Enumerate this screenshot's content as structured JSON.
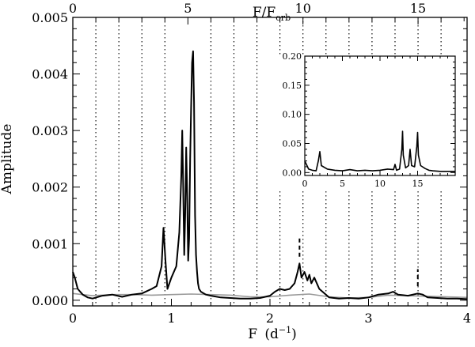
{
  "chart_data": [
    {
      "type": "line",
      "xlabel": "F",
      "xlabel_unit": "(d",
      "xlabel_unit_exp": "−1",
      "xlabel_unit_close": ")",
      "ylabel": "Amplitude",
      "top_axis_label": "F/F",
      "top_axis_label_sub": "orb",
      "xlim": [
        0,
        4
      ],
      "ylim": [
        -0.0001,
        0.005
      ],
      "x_ticks": [
        0,
        1,
        2,
        3,
        4
      ],
      "x_tick_labels": [
        "0",
        "1",
        "2",
        "3",
        "4"
      ],
      "y_ticks": [
        0.0,
        0.001,
        0.002,
        0.003,
        0.004,
        0.005
      ],
      "y_tick_labels": [
        "0.000",
        "0.001",
        "0.002",
        "0.003",
        "0.004",
        "0.005"
      ],
      "top_ticks": [
        0,
        5,
        10,
        15
      ],
      "top_tick_labels": [
        "0",
        "5",
        "10",
        "15"
      ],
      "orbital_frequency": 0.2335,
      "orbital_harmonics": [
        1,
        2,
        3,
        4,
        6,
        7,
        8,
        9,
        10,
        11,
        12,
        13,
        14,
        15,
        16
      ],
      "markers": [
        {
          "x": 2.3,
          "y_range": [
            0.00077,
            0.0011
          ]
        },
        {
          "x": 3.5,
          "y_range": [
            0.00025,
            0.00055
          ]
        }
      ],
      "series": [
        {
          "color": "#000000",
          "x": [
            0.0,
            0.02,
            0.05,
            0.1,
            0.15,
            0.2,
            0.3,
            0.4,
            0.5,
            0.6,
            0.7,
            0.8,
            0.85,
            0.9,
            0.92,
            0.94,
            0.96,
            1.0,
            1.05,
            1.08,
            1.1,
            1.11,
            1.12,
            1.13,
            1.14,
            1.15,
            1.16,
            1.17,
            1.18,
            1.19,
            1.2,
            1.21,
            1.22,
            1.23,
            1.24,
            1.25,
            1.26,
            1.27,
            1.28,
            1.3,
            1.35,
            1.4,
            1.5,
            1.6,
            1.7,
            1.8,
            1.9,
            2.0,
            2.05,
            2.1,
            2.15,
            2.2,
            2.25,
            2.28,
            2.3,
            2.32,
            2.35,
            2.38,
            2.4,
            2.42,
            2.45,
            2.5,
            2.6,
            2.7,
            2.8,
            2.9,
            3.0,
            3.1,
            3.2,
            3.25,
            3.3,
            3.4,
            3.45,
            3.5,
            3.55,
            3.6,
            3.7,
            3.8,
            3.9,
            4.0
          ],
          "y": [
            0.0005,
            0.0004,
            0.0002,
            0.0001,
            5e-05,
            3e-05,
            8e-05,
            0.0001,
            6e-05,
            0.0001,
            0.00012,
            0.0002,
            0.00025,
            0.0006,
            0.00128,
            0.0007,
            0.0002,
            0.0004,
            0.0006,
            0.0012,
            0.0022,
            0.003,
            0.002,
            0.0008,
            0.0015,
            0.0027,
            0.0019,
            0.0007,
            0.0011,
            0.0025,
            0.0034,
            0.0042,
            0.0044,
            0.0035,
            0.0015,
            0.0008,
            0.0005,
            0.0003,
            0.0002,
            0.00015,
            0.0001,
            8e-05,
            5e-05,
            4e-05,
            3e-05,
            3e-05,
            4e-05,
            8e-05,
            0.00015,
            0.0002,
            0.00018,
            0.0002,
            0.0003,
            0.0005,
            0.00065,
            0.0004,
            0.0005,
            0.00035,
            0.00045,
            0.0003,
            0.0004,
            0.0002,
            5e-05,
            3e-05,
            4e-05,
            3e-05,
            5e-05,
            0.0001,
            0.00012,
            0.00015,
            0.0001,
            8e-05,
            0.0001,
            0.00012,
            0.0001,
            5e-05,
            4e-05,
            3e-05,
            3e-05,
            2e-05
          ]
        },
        {
          "color": "#999999",
          "x": [
            0.0,
            0.2,
            0.4,
            0.6,
            0.8,
            1.0,
            1.2,
            1.4,
            1.6,
            1.8,
            2.0,
            2.2,
            2.4,
            2.6,
            2.8,
            3.0,
            3.2,
            3.4,
            3.6,
            3.8,
            4.0
          ],
          "y": [
            0.00012,
            8e-05,
            0.0001,
            0.0001,
            9e-05,
            0.0001,
            0.00011,
            0.0001,
            9e-05,
            6e-05,
            6e-05,
            9e-05,
            0.00011,
            6e-05,
            4e-05,
            5e-05,
            9e-05,
            8e-05,
            7e-05,
            6e-05,
            5e-05
          ]
        }
      ]
    },
    {
      "type": "line",
      "title": "inset",
      "xlim": [
        0,
        20
      ],
      "ylim": [
        -0.005,
        0.2
      ],
      "x_ticks": [
        0,
        5,
        10,
        15
      ],
      "x_tick_labels": [
        "0",
        "5",
        "10",
        "15"
      ],
      "y_ticks": [
        0.0,
        0.05,
        0.1,
        0.15,
        0.2
      ],
      "y_tick_labels": [
        "0.00",
        "0.05",
        "0.10",
        "0.15",
        "0.20"
      ],
      "series": [
        {
          "color": "#000000",
          "x": [
            0.0,
            0.5,
            1.0,
            1.5,
            1.8,
            2.0,
            2.2,
            3.0,
            4.0,
            5.0,
            6.0,
            7.0,
            8.0,
            9.0,
            10.0,
            11.0,
            11.8,
            12.0,
            12.2,
            12.6,
            12.9,
            13.0,
            13.1,
            13.4,
            13.8,
            14.0,
            14.2,
            14.6,
            14.9,
            15.0,
            15.1,
            15.4,
            16.0,
            16.5,
            17.0,
            18.0,
            19.0,
            20.0
          ],
          "y": [
            0.02,
            0.006,
            0.004,
            0.003,
            0.02,
            0.036,
            0.012,
            0.006,
            0.004,
            0.003,
            0.005,
            0.003,
            0.004,
            0.003,
            0.004,
            0.006,
            0.005,
            0.014,
            0.004,
            0.006,
            0.04,
            0.071,
            0.03,
            0.008,
            0.012,
            0.04,
            0.012,
            0.01,
            0.045,
            0.069,
            0.03,
            0.012,
            0.007,
            0.004,
            0.003,
            0.002,
            0.002,
            0.002
          ]
        }
      ]
    }
  ]
}
